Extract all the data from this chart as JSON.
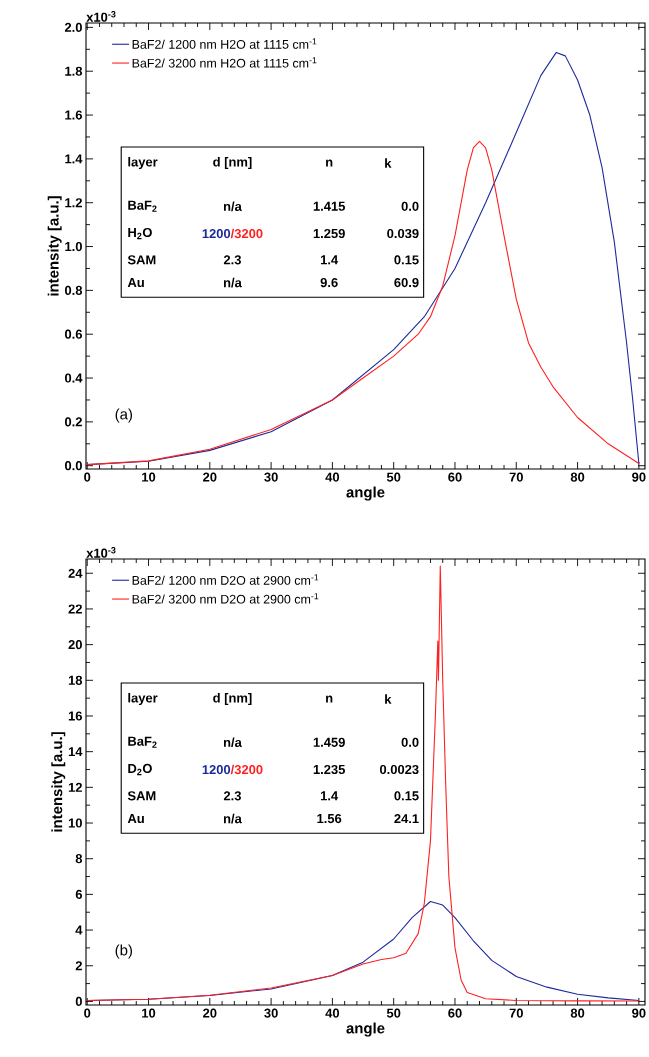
{
  "chart_data": [
    {
      "type": "line",
      "xlabel": "angle",
      "ylabel": "intensity [a.u.]",
      "legend": "top left",
      "marker": "none",
      "line_style": "solid",
      "xlim": [
        -0.2,
        91
      ],
      "xticks": [
        0,
        10,
        20,
        30,
        40,
        50,
        60,
        70,
        80,
        90
      ],
      "ylim": [
        -0.015,
        2.02
      ],
      "yticks": [
        {
          "value": 0,
          "label": "0.0"
        },
        0.2,
        0.4,
        0.6,
        0.8,
        {
          "value": 1,
          "label": "1.0"
        },
        1.2,
        1.4,
        1.6,
        1.8,
        {
          "value": 2.0,
          "label": "2.0"
        }
      ],
      "series": [
        {
          "name": "BaF2/ 1200 nm H2O at 1115 cm$^{-1}$",
          "color": "#1c2a9c",
          "x": [
            0,
            10,
            20,
            30,
            40,
            50,
            55,
            60,
            65,
            70,
            74,
            76.5,
            78,
            80,
            82,
            84,
            86,
            88,
            89,
            90
          ],
          "values": [
            0.005,
            0.02,
            0.07,
            0.155,
            0.3,
            0.53,
            0.68,
            0.9,
            1.2,
            1.52,
            1.78,
            1.885,
            1.87,
            1.76,
            1.6,
            1.36,
            1.02,
            0.56,
            0.3,
            0.01
          ]
        },
        {
          "name": "BaF2/ 3200 nm H2O at 1115 cm$^{-1}$",
          "color": "#ff2020",
          "x": [
            0,
            10,
            20,
            30,
            40,
            45,
            50,
            54,
            56,
            58,
            60,
            62,
            63,
            64,
            65,
            66,
            68,
            70,
            72,
            74,
            76,
            80,
            85,
            90
          ],
          "values": [
            0.005,
            0.022,
            0.075,
            0.165,
            0.3,
            0.4,
            0.5,
            0.6,
            0.68,
            0.82,
            1.05,
            1.35,
            1.45,
            1.48,
            1.45,
            1.35,
            1.05,
            0.76,
            0.56,
            0.45,
            0.36,
            0.22,
            0.1,
            0.01
          ]
        }
      ],
      "annotations": [
        "(a)",
        "layer",
        "d [nm]",
        "n",
        "k",
        "BaF$_{2}$",
        "n/a",
        "1.415",
        "0.0",
        "H$_{2}$O",
        "1200",
        "/3200",
        "1.259",
        "0.039",
        "SAM",
        "2.3",
        "1.4",
        "0.15",
        "Au",
        "n/a",
        "9.6",
        "60.9",
        "x10$^{-3}$"
      ]
    },
    {
      "type": "line",
      "xlabel": "angle",
      "ylabel": "intensity [a.u.]",
      "legend": "top left",
      "marker": "none",
      "line_style": "solid",
      "xlim": [
        -0.2,
        91
      ],
      "xticks": [
        0,
        10,
        20,
        30,
        40,
        50,
        60,
        70,
        80,
        90
      ],
      "ylim": [
        -0.2,
        24.8
      ],
      "yticks": [
        0,
        2,
        4,
        6,
        8,
        10,
        12,
        14,
        16,
        18,
        20,
        22,
        24
      ],
      "series": [
        {
          "name": "BaF2/ 1200 nm D2O at 2900 cm$^{-1}$",
          "color": "#1c2a9c",
          "x": [
            0,
            10,
            20,
            30,
            40,
            45,
            50,
            53,
            56,
            58,
            60,
            63,
            66,
            70,
            75,
            80,
            85,
            90
          ],
          "values": [
            0.05,
            0.12,
            0.33,
            0.7,
            1.45,
            2.2,
            3.5,
            4.7,
            5.6,
            5.4,
            4.7,
            3.4,
            2.3,
            1.4,
            0.8,
            0.4,
            0.2,
            0.05
          ]
        },
        {
          "name": "BaF2/ 3200 nm D2O at 2900 cm$^{-1}$",
          "color": "#ff2020",
          "x": [
            0,
            10,
            20,
            30,
            40,
            45,
            48,
            50,
            52,
            54,
            55,
            56,
            56.8,
            57.2,
            57.3,
            57.6,
            58,
            58.5,
            59,
            60,
            61,
            62,
            65,
            70,
            80,
            90
          ],
          "values": [
            0.05,
            0.12,
            0.35,
            0.75,
            1.45,
            2.1,
            2.35,
            2.45,
            2.7,
            3.8,
            5.5,
            9,
            16,
            20.2,
            18,
            24.4,
            18,
            12,
            7,
            3,
            1.2,
            0.5,
            0.15,
            0.05,
            0.03,
            0.02
          ]
        }
      ],
      "annotations": [
        "(b)",
        "layer",
        "d [nm]",
        "n",
        "k",
        "BaF$_{2}$",
        "n/a",
        "1.459",
        "0.0",
        "D$_{2}$O",
        "1200",
        "/3200",
        "1.235",
        "0.0023",
        "SAM",
        "2.3",
        "1.4",
        "0.15",
        "Au",
        "n/a",
        "1.56",
        "24.1",
        "x10$^{-3}$"
      ]
    }
  ]
}
